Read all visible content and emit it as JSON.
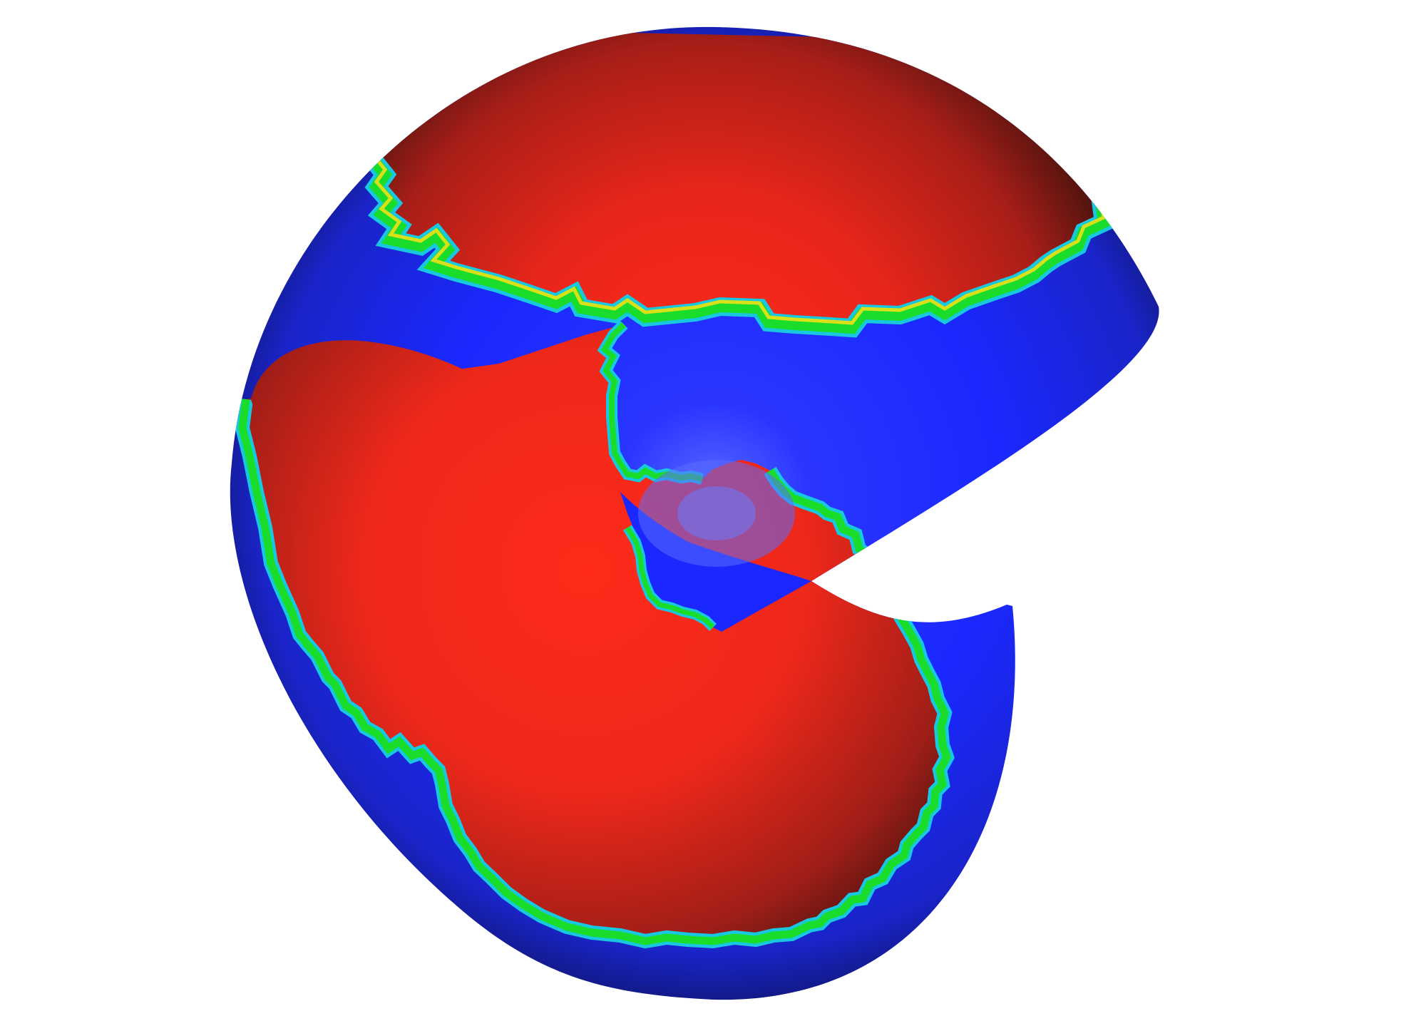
{
  "scene": {
    "subject": "cut-sphere-visualization",
    "colors": {
      "background": "#ffffff",
      "phase_a": "#ff2a1a",
      "phase_a_dark": "#5a1510",
      "phase_b": "#1a28ff",
      "phase_b_dark": "#0e1466",
      "highlight": "#5a6cff",
      "interface_green": "#1adc2a",
      "interface_cyan": "#18c8e0",
      "interface_yellow": "#d8e01a"
    }
  }
}
